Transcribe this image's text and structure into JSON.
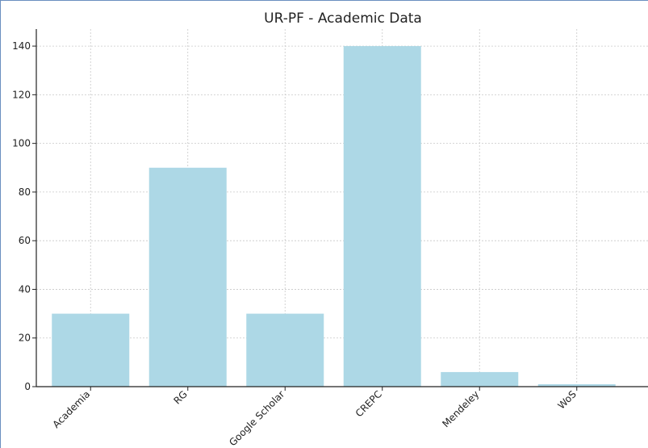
{
  "chart_data": {
    "type": "bar",
    "title": "UR-PF - Academic Data",
    "xlabel": "",
    "ylabel": "",
    "categories": [
      "Academia",
      "RG",
      "Google Scholar",
      "CREPC",
      "Mendeley",
      "WoS"
    ],
    "values": [
      30,
      90,
      30,
      140,
      6,
      1
    ],
    "ylim": [
      0,
      147
    ],
    "yticks": [
      0,
      20,
      40,
      60,
      80,
      100,
      120,
      140
    ],
    "grid": true,
    "bar_color": "#add8e6"
  }
}
